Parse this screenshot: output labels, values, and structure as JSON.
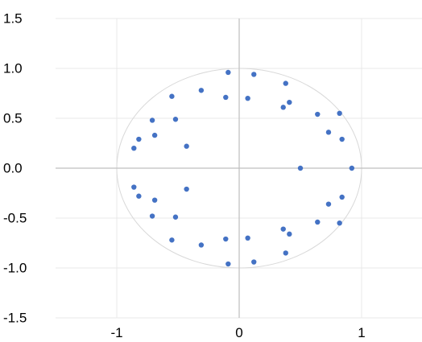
{
  "chart_data": {
    "type": "scatter",
    "title": "",
    "xlabel": "",
    "ylabel": "",
    "xlim": [
      -1.5,
      1.5
    ],
    "ylim": [
      -1.5,
      1.5
    ],
    "x_ticks": [
      {
        "value": -1,
        "label": "-1"
      },
      {
        "value": 0,
        "label": "0"
      },
      {
        "value": 1,
        "label": "1"
      }
    ],
    "y_ticks": [
      {
        "value": 1.5,
        "label": "1.5"
      },
      {
        "value": 1.0,
        "label": "1.0"
      },
      {
        "value": 0.5,
        "label": "0.5"
      },
      {
        "value": 0.0,
        "label": "0.0"
      },
      {
        "value": -0.5,
        "label": "-0.5"
      },
      {
        "value": -1.0,
        "label": "-1.0"
      },
      {
        "value": -1.5,
        "label": "-1.5"
      }
    ],
    "grid": true,
    "legend": "none",
    "unit_circle": true,
    "marker_color": "#4472c4",
    "circle_color": "#d9d9d9",
    "grid_color": "#e8e8e8",
    "axis_color": "#bfbfbf",
    "series": [
      {
        "points": [
          {
            "x": 0.92,
            "y": 0.0
          },
          {
            "x": 0.84,
            "y": 0.29
          },
          {
            "x": 0.82,
            "y": 0.55
          },
          {
            "x": 0.73,
            "y": 0.36
          },
          {
            "x": 0.64,
            "y": 0.54
          },
          {
            "x": 0.5,
            "y": 0.0
          },
          {
            "x": 0.41,
            "y": 0.66
          },
          {
            "x": 0.38,
            "y": 0.85
          },
          {
            "x": 0.36,
            "y": 0.61
          },
          {
            "x": 0.12,
            "y": 0.94
          },
          {
            "x": 0.07,
            "y": 0.7
          },
          {
            "x": -0.09,
            "y": 0.96
          },
          {
            "x": -0.11,
            "y": 0.71
          },
          {
            "x": -0.31,
            "y": 0.78
          },
          {
            "x": -0.55,
            "y": 0.72
          },
          {
            "x": -0.52,
            "y": 0.49
          },
          {
            "x": -0.43,
            "y": 0.22
          },
          {
            "x": -0.71,
            "y": 0.48
          },
          {
            "x": -0.69,
            "y": 0.33
          },
          {
            "x": -0.82,
            "y": 0.29
          },
          {
            "x": -0.86,
            "y": 0.2
          },
          {
            "x": -0.86,
            "y": -0.19
          },
          {
            "x": -0.82,
            "y": -0.28
          },
          {
            "x": -0.69,
            "y": -0.32
          },
          {
            "x": -0.71,
            "y": -0.48
          },
          {
            "x": -0.52,
            "y": -0.49
          },
          {
            "x": -0.43,
            "y": -0.21
          },
          {
            "x": -0.55,
            "y": -0.72
          },
          {
            "x": -0.31,
            "y": -0.77
          },
          {
            "x": -0.11,
            "y": -0.71
          },
          {
            "x": -0.09,
            "y": -0.96
          },
          {
            "x": 0.07,
            "y": -0.7
          },
          {
            "x": 0.12,
            "y": -0.94
          },
          {
            "x": 0.36,
            "y": -0.61
          },
          {
            "x": 0.41,
            "y": -0.66
          },
          {
            "x": 0.38,
            "y": -0.85
          },
          {
            "x": 0.64,
            "y": -0.54
          },
          {
            "x": 0.73,
            "y": -0.36
          },
          {
            "x": 0.82,
            "y": -0.55
          },
          {
            "x": 0.84,
            "y": -0.29
          }
        ]
      }
    ]
  }
}
